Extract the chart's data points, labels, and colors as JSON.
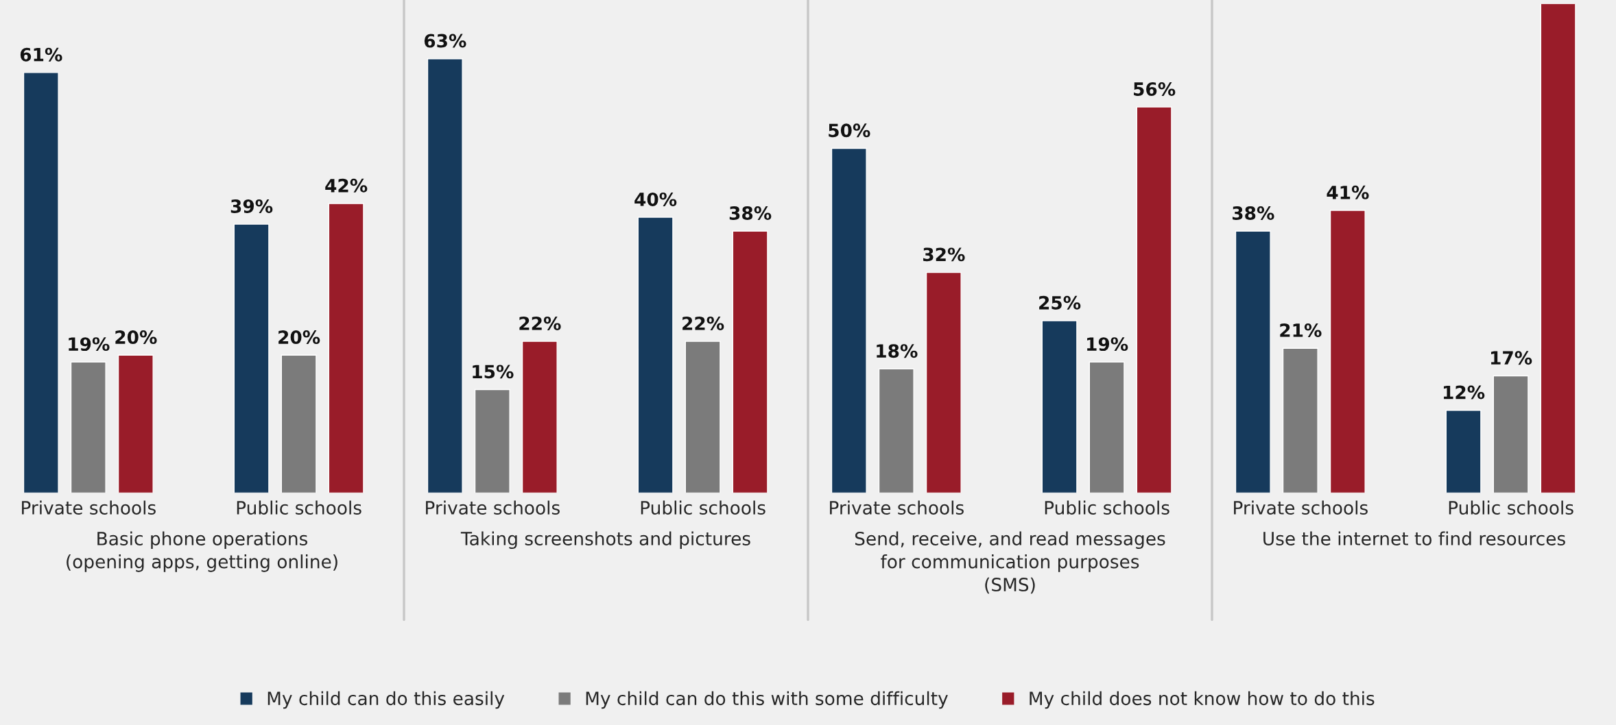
{
  "chart_data": [
    {
      "type": "bar",
      "xlabel": "Basic phone operations\n(opening apps, getting online)",
      "categories": [
        "Private schools",
        "Public schools"
      ],
      "tick_labels": "x",
      "grid": false,
      "legend": "bottom",
      "series": [
        {
          "name": "My child can do this easily",
          "color": "#163a5c",
          "values": [
            61,
            39
          ],
          "value_labels": [
            "61%",
            "39%"
          ]
        },
        {
          "name": "My child can do this with some difficulty",
          "color": "#7b7b7b",
          "values": [
            19,
            20
          ],
          "value_labels": [
            "19%",
            "20%"
          ]
        },
        {
          "name": "My child does not know how to do this",
          "color": "#991c29",
          "values": [
            20,
            42
          ],
          "value_labels": [
            "20%",
            "42%"
          ]
        }
      ]
    },
    {
      "type": "bar",
      "xlabel": "Taking screenshots and pictures",
      "categories": [
        "Private schools",
        "Public schools"
      ],
      "tick_labels": "x",
      "grid": false,
      "series": [
        {
          "color": "#163a5c",
          "values": [
            63,
            40
          ],
          "value_labels": [
            "63%",
            "40%"
          ]
        },
        {
          "color": "#7b7b7b",
          "values": [
            15,
            22
          ],
          "value_labels": [
            "15%",
            "22%"
          ]
        },
        {
          "color": "#991c29",
          "values": [
            22,
            38
          ],
          "value_labels": [
            "22%",
            "38%"
          ]
        }
      ]
    },
    {
      "type": "bar",
      "xlabel": "Send, receive, and read messages\nfor communication purposes\n(SMS)",
      "categories": [
        "Private schools",
        "Public schools"
      ],
      "tick_labels": "x",
      "grid": false,
      "series": [
        {
          "color": "#163a5c",
          "values": [
            50,
            25
          ],
          "value_labels": [
            "50%",
            "25%"
          ]
        },
        {
          "color": "#7b7b7b",
          "values": [
            18,
            19
          ],
          "value_labels": [
            "18%",
            "19%"
          ]
        },
        {
          "color": "#991c29",
          "values": [
            32,
            56
          ],
          "value_labels": [
            "32%",
            "56%"
          ]
        }
      ]
    },
    {
      "type": "bar",
      "xlabel": "Use the internet to find resources",
      "categories": [
        "Private schools",
        "Public schools"
      ],
      "ylim": [
        0,
        71
      ],
      "tick_labels": "x",
      "grid": false,
      "series": [
        {
          "color": "#163a5c",
          "values": [
            38,
            12
          ],
          "value_labels": [
            "38%",
            "12%"
          ]
        },
        {
          "color": "#7b7b7b",
          "values": [
            21,
            17
          ],
          "value_labels": [
            "21%",
            "17%"
          ]
        },
        {
          "color": "#991c29",
          "values": [
            41,
            71
          ],
          "value_labels": [
            "41%",
            null
          ]
        }
      ]
    }
  ]
}
